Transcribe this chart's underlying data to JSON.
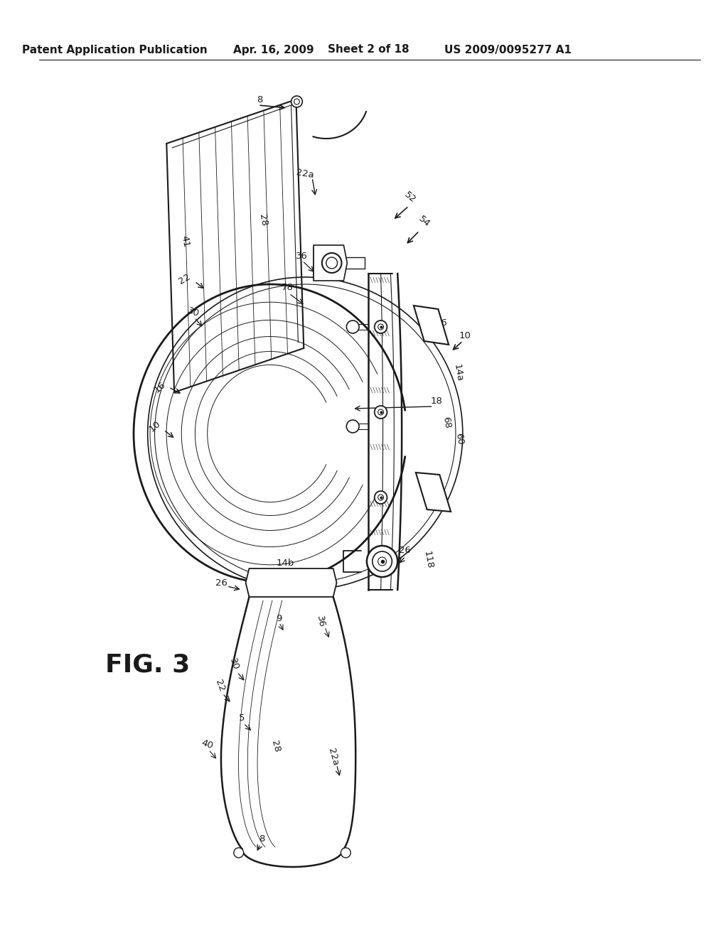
{
  "background_color": "#ffffff",
  "header_text": "Patent Application Publication",
  "header_date": "Apr. 16, 2009",
  "header_sheet": "Sheet 2 of 18",
  "header_patent": "US 2009/0095277 A1",
  "figure_label": "FIG. 3",
  "line_color": "#1a1a1a",
  "header_fontsize": 11,
  "label_fontsize": 9.5,
  "fig_label_fontsize": 26
}
